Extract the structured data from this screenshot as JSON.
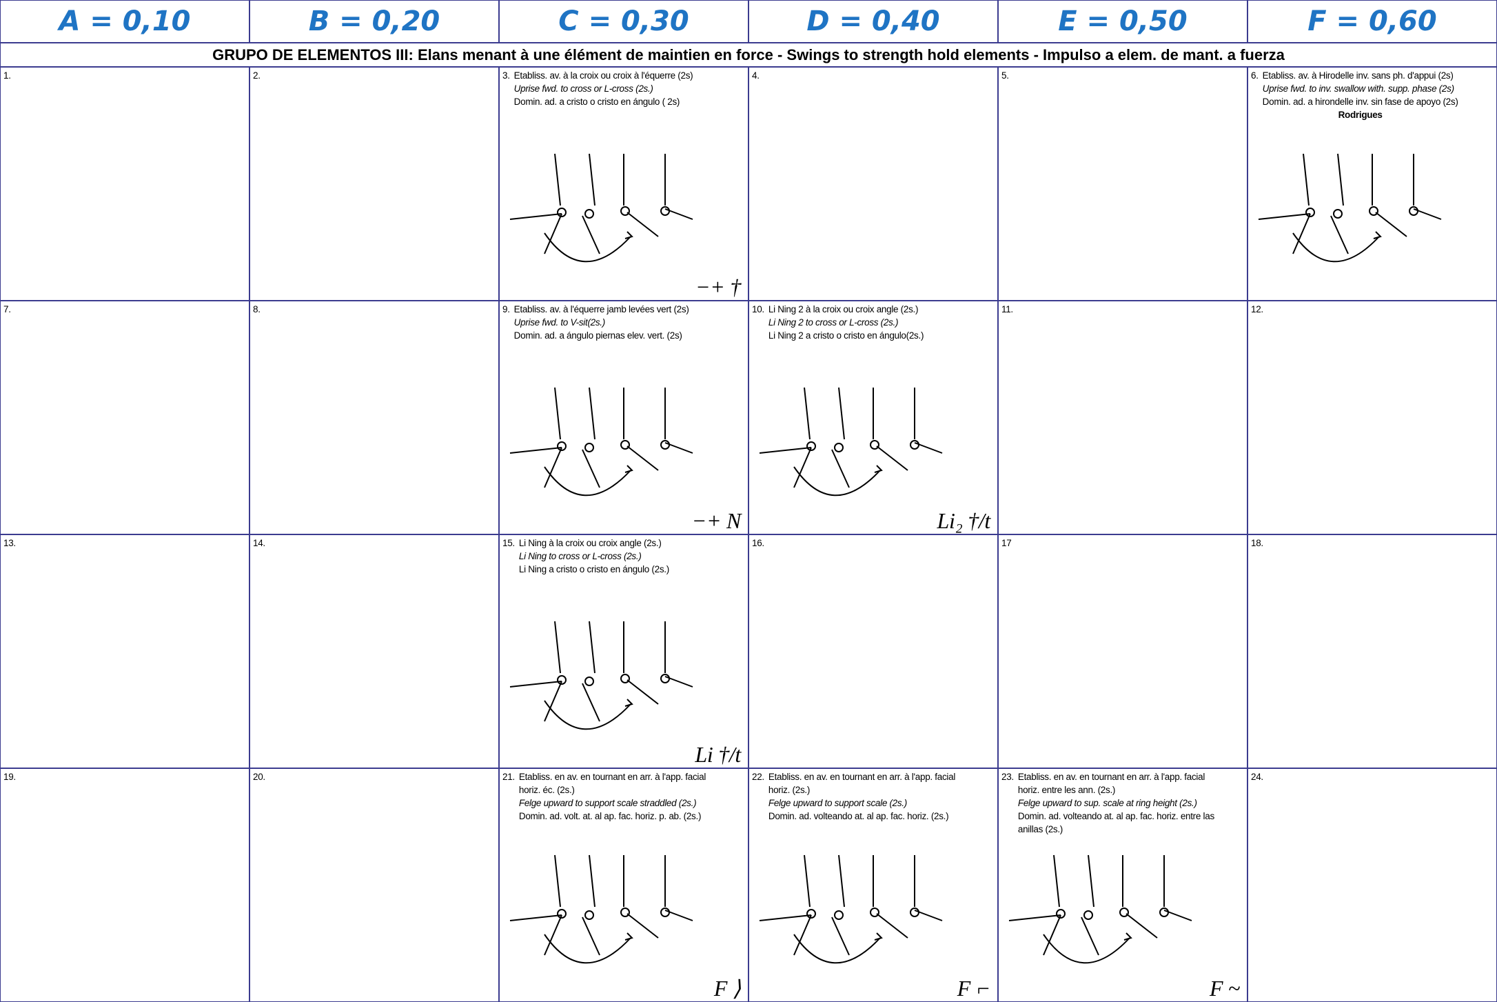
{
  "header": {
    "columns": [
      "A = 0,10",
      "B = 0,20",
      "C = 0,30",
      "D = 0,40",
      "E = 0,50",
      "F = 0,60"
    ]
  },
  "group_title": "GRUPO DE ELEMENTOS III:  Elans menant à une élément de maintien en force - Swings to strength hold elements - Impulso a elem. de mant. a fuerza",
  "rows": [
    [
      {
        "number": "1."
      },
      {
        "number": "2."
      },
      {
        "number": "3.",
        "fr": [
          "Etabliss. av. à la croix  ou croix  à l'équerre (2s)"
        ],
        "en": [
          "Uprise fwd. to cross or L-cross (2s.)"
        ],
        "es": [
          "Domin. ad. a cristo o cristo en ángulo ( 2s)"
        ],
        "symbol": "−+ †"
      },
      {
        "number": "4."
      },
      {
        "number": "5."
      },
      {
        "number": "6.",
        "fr": [
          "Etabliss. av. à Hirodelle inv. sans ph. d'appui (2s)"
        ],
        "en": [
          "Uprise fwd. to inv. swallow with. supp. phase (2s)"
        ],
        "es": [
          "Domin. ad. a hirondelle inv. sin fase de apoyo (2s)"
        ],
        "name": "Rodrigues"
      }
    ],
    [
      {
        "number": "7."
      },
      {
        "number": "8."
      },
      {
        "number": "9.",
        "fr": [
          "Etabliss. av. à l'équerre jamb levées vert (2s)"
        ],
        "en": [
          "Uprise fwd. to V-sit(2s.)"
        ],
        "es": [
          "Domin. ad. a ángulo piernas elev. vert.  (2s)"
        ],
        "symbol": "−+ N"
      },
      {
        "number": "10.",
        "fr": [
          "Li Ning 2 à la croix ou croix angle (2s.)"
        ],
        "en": [
          "Li Ning 2 to cross or L-cross (2s.)"
        ],
        "es": [
          "Li Ning 2 a cristo o cristo en ángulo(2s.)"
        ],
        "symbol": "Li₂ †/t"
      },
      {
        "number": "11."
      },
      {
        "number": "12."
      }
    ],
    [
      {
        "number": "13."
      },
      {
        "number": "14."
      },
      {
        "number": "15.",
        "fr": [
          "Li Ning à la croix ou croix angle (2s.)"
        ],
        "en": [
          "Li Ning to cross or L-cross (2s.)"
        ],
        "es": [
          "Li Ning a cristo o cristo en ángulo (2s.)"
        ],
        "symbol": "Li †/t"
      },
      {
        "number": "16."
      },
      {
        "number": "17"
      },
      {
        "number": "18."
      }
    ],
    [
      {
        "number": "19."
      },
      {
        "number": "20."
      },
      {
        "number": "21.",
        "fr": [
          "Etabliss. en av. en tournant en arr. à l'app. facial",
          "horiz. éc. (2s.)"
        ],
        "en": [
          "Felge upward to support scale straddled (2s.)"
        ],
        "es": [
          "Domin. ad. volt.  at. al ap. fac. horiz. p. ab. (2s.)"
        ],
        "symbol": "F ⟩"
      },
      {
        "number": "22.",
        "fr": [
          "Etabliss. en av. en tournant en arr. à l'app. facial",
          "horiz. (2s.)"
        ],
        "en": [
          "Felge upward to support scale (2s.)"
        ],
        "es": [
          "Domin. ad. volteando at. al ap. fac. horiz. (2s.)"
        ],
        "symbol": "F ⌐"
      },
      {
        "number": "23.",
        "fr": [
          "Etabliss. en av. en tournant en arr. à l'app. facial",
          "horiz. entre les ann. (2s.)"
        ],
        "en": [
          "Felge upward to sup. scale at ring height (2s.)"
        ],
        "es": [
          "Domin. ad. volteando at. al ap. fac. horiz. entre las",
          "anillas (2s.)"
        ],
        "symbol": "F ~"
      },
      {
        "number": "24."
      }
    ]
  ]
}
